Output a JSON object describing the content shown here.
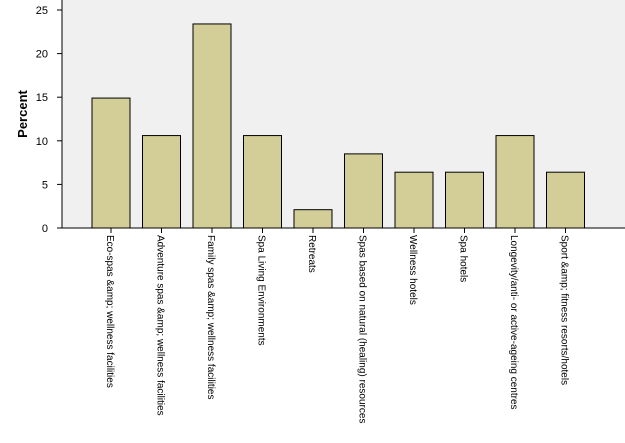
{
  "chart_data": {
    "type": "bar",
    "title": "",
    "xlabel": "",
    "ylabel": "Percent",
    "ylim": [
      0,
      25
    ],
    "yticks": [
      0,
      5,
      10,
      15,
      20,
      25
    ],
    "grid": false,
    "legend": "none",
    "categories": [
      "Eco-spas &amp; wellness facilities",
      "Adventure spas &amp; wellness facilities",
      "Family spas &amp; wellness facilities",
      "Spa Living Environments",
      "Retreats",
      "Spas based on natural (healing) resources",
      "Wellness hotels",
      "Spa hotels",
      "Longevity/anti- or active-ageing centres",
      "Sport &amp; fitness resorts/hotels"
    ],
    "values": [
      14.9,
      10.6,
      23.4,
      10.6,
      2.1,
      8.5,
      6.4,
      6.4,
      10.6,
      6.4
    ]
  },
  "colors": {
    "plot_background": "#f0f0f0",
    "bar_fill": "#d3ce98",
    "bar_stroke": "#000000",
    "axis": "#000000",
    "text": "#000000"
  }
}
